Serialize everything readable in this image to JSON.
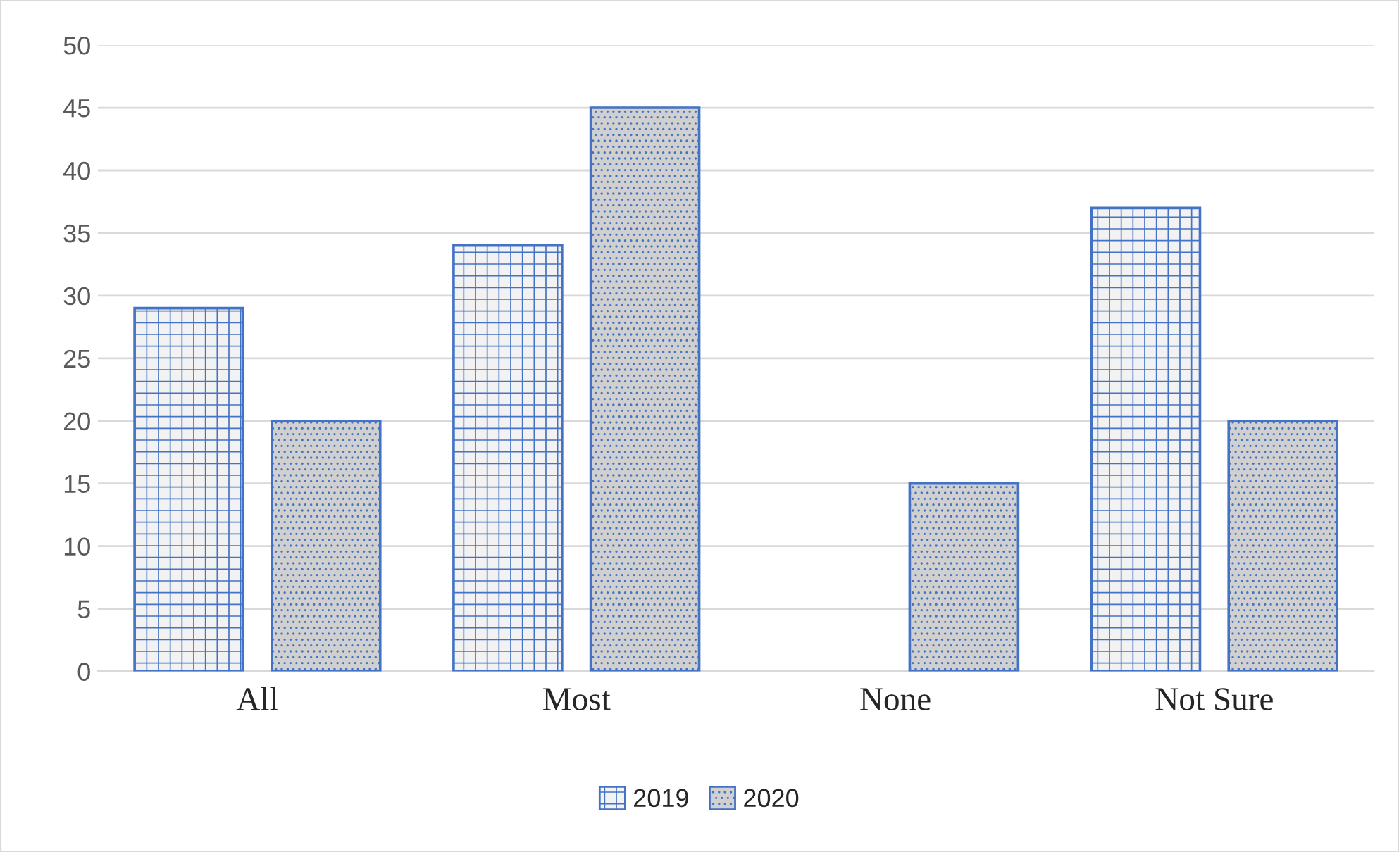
{
  "chart_data": {
    "type": "bar",
    "categories": [
      "All",
      "Most",
      "None",
      "Not Sure"
    ],
    "series": [
      {
        "name": "2019",
        "color": "#4472c4",
        "values": [
          29,
          34,
          0,
          37
        ]
      },
      {
        "name": "2020",
        "color": "#4472c4",
        "values": [
          20,
          45,
          15,
          20
        ]
      }
    ],
    "ylim": [
      0,
      50
    ],
    "yticks": [
      0,
      5,
      10,
      15,
      20,
      25,
      30,
      35,
      40,
      45,
      50
    ],
    "grid": "y",
    "legend": "bottom"
  }
}
